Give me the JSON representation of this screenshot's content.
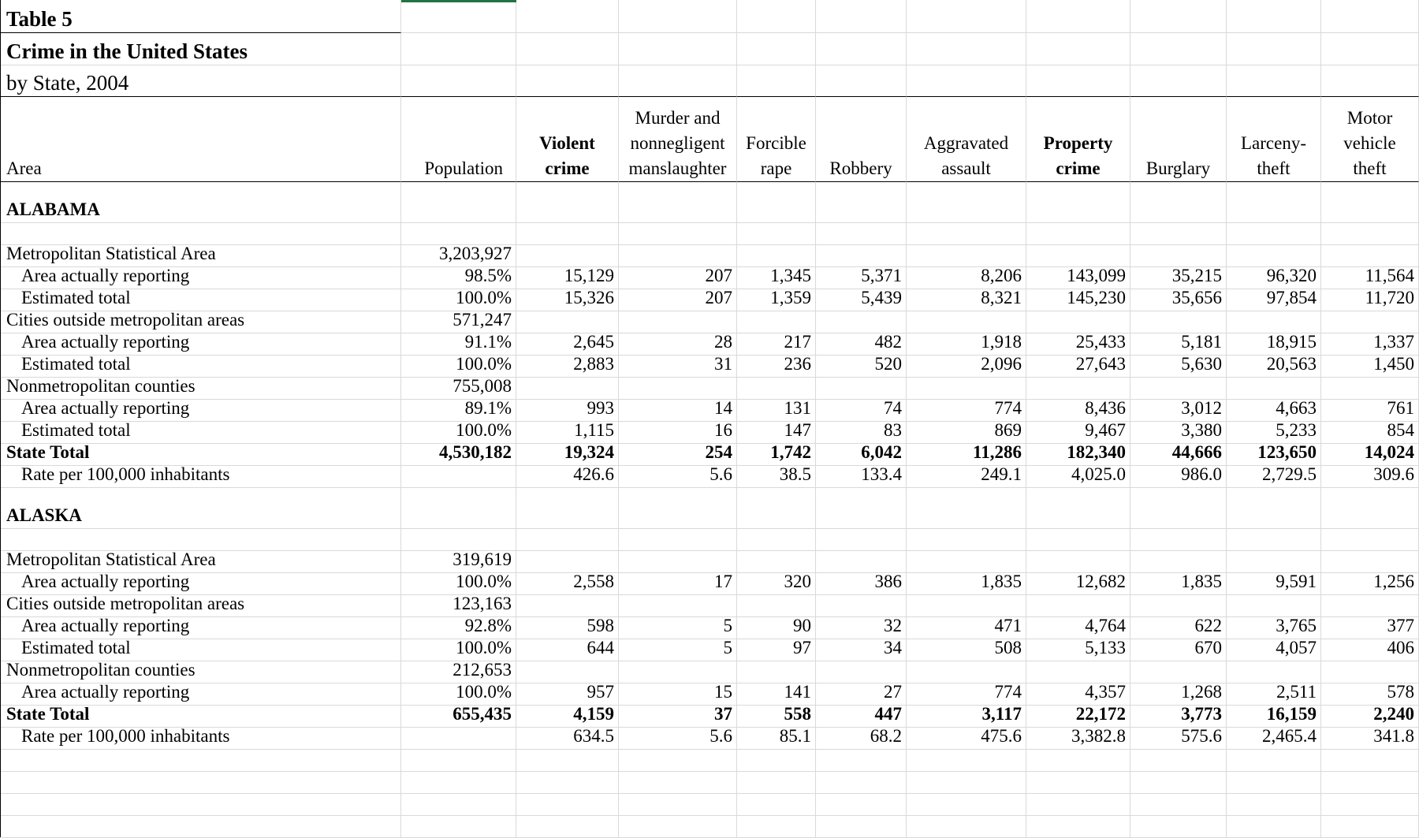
{
  "title": {
    "line1": "Table 5",
    "line2": "Crime in the United States",
    "line3": "by State, 2004"
  },
  "columns": [
    "Area",
    "Population",
    "Violent crime",
    "Murder and nonnegligent manslaughter",
    "Forcible rape",
    "Robbery",
    "Aggravated assault",
    "Property crime",
    "Burglary",
    "Larceny-theft",
    "Motor vehicle theft"
  ],
  "sections": [
    {
      "state": "ALABAMA",
      "rows": [
        {
          "label": "Metropolitan Statistical Area",
          "values": [
            "3,203,927",
            "",
            "",
            "",
            "",
            "",
            "",
            "",
            "",
            ""
          ]
        },
        {
          "label": "Area actually reporting",
          "indent": true,
          "values": [
            "98.5%",
            "15,129",
            "207",
            "1,345",
            "5,371",
            "8,206",
            "143,099",
            "35,215",
            "96,320",
            "11,564"
          ]
        },
        {
          "label": "Estimated total",
          "indent": true,
          "values": [
            "100.0%",
            "15,326",
            "207",
            "1,359",
            "5,439",
            "8,321",
            "145,230",
            "35,656",
            "97,854",
            "11,720"
          ]
        },
        {
          "label": "Cities outside metropolitan areas",
          "values": [
            "571,247",
            "",
            "",
            "",
            "",
            "",
            "",
            "",
            "",
            ""
          ]
        },
        {
          "label": "Area actually reporting",
          "indent": true,
          "values": [
            "91.1%",
            "2,645",
            "28",
            "217",
            "482",
            "1,918",
            "25,433",
            "5,181",
            "18,915",
            "1,337"
          ]
        },
        {
          "label": "Estimated total",
          "indent": true,
          "values": [
            "100.0%",
            "2,883",
            "31",
            "236",
            "520",
            "2,096",
            "27,643",
            "5,630",
            "20,563",
            "1,450"
          ]
        },
        {
          "label": "Nonmetropolitan counties",
          "values": [
            "755,008",
            "",
            "",
            "",
            "",
            "",
            "",
            "",
            "",
            ""
          ]
        },
        {
          "label": "Area actually reporting",
          "indent": true,
          "values": [
            "89.1%",
            "993",
            "14",
            "131",
            "74",
            "774",
            "8,436",
            "3,012",
            "4,663",
            "761"
          ]
        },
        {
          "label": "Estimated total",
          "indent": true,
          "values": [
            "100.0%",
            "1,115",
            "16",
            "147",
            "83",
            "869",
            "9,467",
            "3,380",
            "5,233",
            "854"
          ]
        },
        {
          "label": "State Total",
          "bold": true,
          "values": [
            "4,530,182",
            "19,324",
            "254",
            "1,742",
            "6,042",
            "11,286",
            "182,340",
            "44,666",
            "123,650",
            "14,024"
          ]
        },
        {
          "label": "Rate per 100,000 inhabitants",
          "indent": true,
          "values": [
            "",
            "426.6",
            "5.6",
            "38.5",
            "133.4",
            "249.1",
            "4,025.0",
            "986.0",
            "2,729.5",
            "309.6"
          ]
        }
      ]
    },
    {
      "state": "ALASKA",
      "rows": [
        {
          "label": "Metropolitan Statistical Area",
          "values": [
            "319,619",
            "",
            "",
            "",
            "",
            "",
            "",
            "",
            "",
            ""
          ]
        },
        {
          "label": "Area actually reporting",
          "indent": true,
          "values": [
            "100.0%",
            "2,558",
            "17",
            "320",
            "386",
            "1,835",
            "12,682",
            "1,835",
            "9,591",
            "1,256"
          ]
        },
        {
          "label": "Cities outside metropolitan areas",
          "values": [
            "123,163",
            "",
            "",
            "",
            "",
            "",
            "",
            "",
            "",
            ""
          ]
        },
        {
          "label": "Area actually reporting",
          "indent": true,
          "values": [
            "92.8%",
            "598",
            "5",
            "90",
            "32",
            "471",
            "4,764",
            "622",
            "3,765",
            "377"
          ]
        },
        {
          "label": "Estimated total",
          "indent": true,
          "values": [
            "100.0%",
            "644",
            "5",
            "97",
            "34",
            "508",
            "5,133",
            "670",
            "4,057",
            "406"
          ]
        },
        {
          "label": "Nonmetropolitan counties",
          "values": [
            "212,653",
            "",
            "",
            "",
            "",
            "",
            "",
            "",
            "",
            ""
          ]
        },
        {
          "label": "Area actually reporting",
          "indent": true,
          "values": [
            "100.0%",
            "957",
            "15",
            "141",
            "27",
            "774",
            "4,357",
            "1,268",
            "2,511",
            "578"
          ]
        },
        {
          "label": "State Total",
          "bold": true,
          "values": [
            "655,435",
            "4,159",
            "37",
            "558",
            "447",
            "3,117",
            "22,172",
            "3,773",
            "16,159",
            "2,240"
          ]
        },
        {
          "label": "Rate per 100,000 inhabitants",
          "indent": true,
          "values": [
            "",
            "634.5",
            "5.6",
            "85.1",
            "68.2",
            "475.6",
            "3,382.8",
            "575.6",
            "2,465.4",
            "341.8"
          ]
        }
      ]
    }
  ]
}
